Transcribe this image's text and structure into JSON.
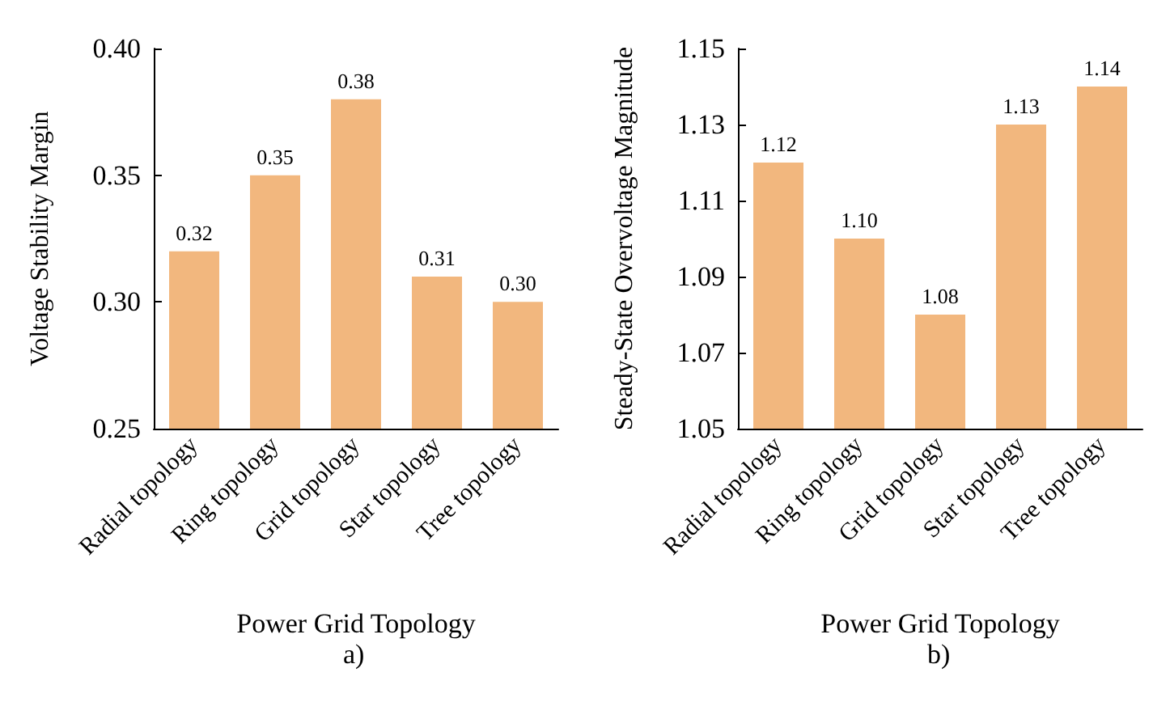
{
  "chart_data": [
    {
      "type": "bar",
      "xlabel": "Power Grid Topology",
      "ylabel": "Voltage Stability Margin",
      "annotations": [
        "a)"
      ],
      "categories": [
        "Radial topology",
        "Ring topology",
        "Grid topology",
        "Star topology",
        "Tree topology"
      ],
      "values": [
        0.32,
        0.35,
        0.38,
        0.31,
        0.3
      ],
      "value_labels": [
        "0.32",
        "0.35",
        "0.38",
        "0.31",
        "0.30"
      ],
      "color": "#f2b77e",
      "ylim": [
        0.25,
        0.4
      ],
      "yticks": [
        0.25,
        {
          "value": 0.3,
          "label": "0.30"
        },
        0.35,
        {
          "value": 0.4,
          "label": "0.40"
        }
      ],
      "grid": false
    },
    {
      "type": "bar",
      "xlabel": "Power Grid Topology",
      "ylabel": "Steady-State Overvoltage Magnitude",
      "annotations": [
        "b)"
      ],
      "categories": [
        "Radial topology",
        "Ring topology",
        "Grid topology",
        "Star topology",
        "Tree topology"
      ],
      "values": [
        1.12,
        1.1,
        1.08,
        1.13,
        1.14
      ],
      "value_labels": [
        "1.12",
        "1.10",
        "1.08",
        "1.13",
        "1.14"
      ],
      "color": "#f2b77e",
      "ylim": [
        1.05,
        1.15
      ],
      "yticks": [
        1.05,
        1.07,
        1.09,
        1.11,
        1.13,
        1.15
      ],
      "grid": false
    }
  ]
}
